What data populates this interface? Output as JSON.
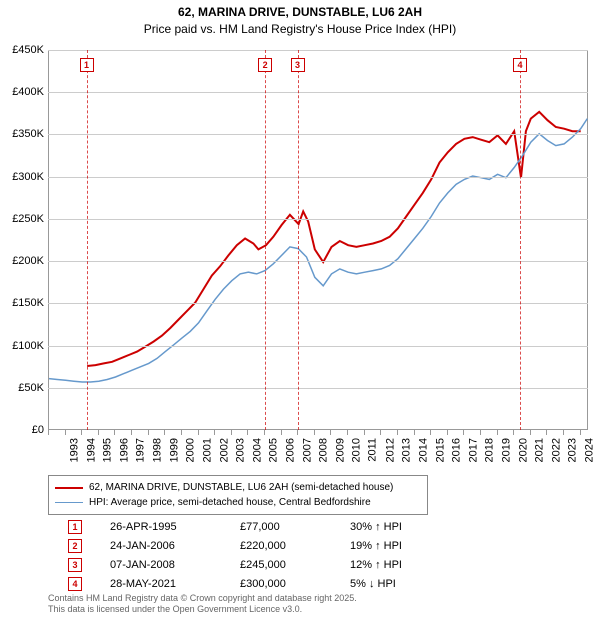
{
  "title": "62, MARINA DRIVE, DUNSTABLE, LU6 2AH",
  "subtitle": "Price paid vs. HM Land Registry's House Price Index (HPI)",
  "chart": {
    "type": "line",
    "background_color": "#ffffff",
    "grid_color": "#cccccc",
    "ylim": [
      0,
      450000
    ],
    "ytick_step": 50000,
    "y_ticks": [
      "£0",
      "£50K",
      "£100K",
      "£150K",
      "£200K",
      "£250K",
      "£300K",
      "£350K",
      "£400K",
      "£450K"
    ],
    "x_ticks": [
      "1993",
      "1994",
      "1995",
      "1996",
      "1997",
      "1998",
      "1999",
      "2000",
      "2001",
      "2002",
      "2003",
      "2004",
      "2005",
      "2006",
      "2007",
      "2008",
      "2009",
      "2010",
      "2011",
      "2012",
      "2013",
      "2014",
      "2015",
      "2016",
      "2017",
      "2018",
      "2019",
      "2020",
      "2021",
      "2022",
      "2023",
      "2024",
      "2025"
    ],
    "x_range": [
      1993,
      2025.5
    ],
    "title_fontsize": 12,
    "label_fontsize": 11,
    "series": [
      {
        "name": "property",
        "label": "62, MARINA DRIVE, DUNSTABLE, LU6 2AH (semi-detached house)",
        "color": "#cc0000",
        "line_width": 2,
        "points": [
          [
            1995.3,
            77000
          ],
          [
            1995.8,
            78000
          ],
          [
            1996.3,
            80000
          ],
          [
            1996.8,
            82000
          ],
          [
            1997.3,
            86000
          ],
          [
            1997.8,
            90000
          ],
          [
            1998.3,
            94000
          ],
          [
            1998.8,
            100000
          ],
          [
            1999.3,
            106000
          ],
          [
            1999.8,
            113000
          ],
          [
            2000.3,
            122000
          ],
          [
            2000.8,
            132000
          ],
          [
            2001.3,
            142000
          ],
          [
            2001.8,
            152000
          ],
          [
            2002.3,
            168000
          ],
          [
            2002.8,
            184000
          ],
          [
            2003.3,
            195000
          ],
          [
            2003.8,
            208000
          ],
          [
            2004.3,
            220000
          ],
          [
            2004.8,
            228000
          ],
          [
            2005.3,
            222000
          ],
          [
            2005.6,
            215000
          ],
          [
            2006.06,
            220000
          ],
          [
            2006.5,
            230000
          ],
          [
            2007.0,
            244000
          ],
          [
            2007.5,
            256000
          ],
          [
            2008.02,
            245000
          ],
          [
            2008.3,
            260000
          ],
          [
            2008.6,
            248000
          ],
          [
            2009.0,
            215000
          ],
          [
            2009.5,
            200000
          ],
          [
            2010.0,
            218000
          ],
          [
            2010.5,
            225000
          ],
          [
            2011.0,
            220000
          ],
          [
            2011.5,
            218000
          ],
          [
            2012.0,
            220000
          ],
          [
            2012.5,
            222000
          ],
          [
            2013.0,
            225000
          ],
          [
            2013.5,
            230000
          ],
          [
            2014.0,
            240000
          ],
          [
            2014.5,
            254000
          ],
          [
            2015.0,
            268000
          ],
          [
            2015.5,
            282000
          ],
          [
            2016.0,
            298000
          ],
          [
            2016.5,
            318000
          ],
          [
            2017.0,
            330000
          ],
          [
            2017.5,
            340000
          ],
          [
            2018.0,
            346000
          ],
          [
            2018.5,
            348000
          ],
          [
            2019.0,
            345000
          ],
          [
            2019.5,
            342000
          ],
          [
            2020.0,
            350000
          ],
          [
            2020.5,
            340000
          ],
          [
            2021.0,
            355000
          ],
          [
            2021.41,
            300000
          ],
          [
            2021.7,
            355000
          ],
          [
            2022.0,
            370000
          ],
          [
            2022.5,
            378000
          ],
          [
            2023.0,
            368000
          ],
          [
            2023.5,
            360000
          ],
          [
            2024.0,
            358000
          ],
          [
            2024.5,
            355000
          ],
          [
            2025.0,
            355000
          ]
        ]
      },
      {
        "name": "hpi",
        "label": "HPI: Average price, semi-detached house, Central Bedfordshire",
        "color": "#6699cc",
        "line_width": 1.5,
        "points": [
          [
            1993.0,
            62000
          ],
          [
            1993.5,
            61000
          ],
          [
            1994.0,
            60000
          ],
          [
            1994.5,
            59000
          ],
          [
            1995.0,
            58000
          ],
          [
            1995.5,
            58000
          ],
          [
            1996.0,
            59000
          ],
          [
            1996.5,
            61000
          ],
          [
            1997.0,
            64000
          ],
          [
            1997.5,
            68000
          ],
          [
            1998.0,
            72000
          ],
          [
            1998.5,
            76000
          ],
          [
            1999.0,
            80000
          ],
          [
            1999.5,
            86000
          ],
          [
            2000.0,
            94000
          ],
          [
            2000.5,
            102000
          ],
          [
            2001.0,
            110000
          ],
          [
            2001.5,
            118000
          ],
          [
            2002.0,
            128000
          ],
          [
            2002.5,
            142000
          ],
          [
            2003.0,
            156000
          ],
          [
            2003.5,
            168000
          ],
          [
            2004.0,
            178000
          ],
          [
            2004.5,
            186000
          ],
          [
            2005.0,
            188000
          ],
          [
            2005.5,
            186000
          ],
          [
            2006.0,
            190000
          ],
          [
            2006.5,
            198000
          ],
          [
            2007.0,
            208000
          ],
          [
            2007.5,
            218000
          ],
          [
            2008.0,
            216000
          ],
          [
            2008.5,
            206000
          ],
          [
            2009.0,
            182000
          ],
          [
            2009.5,
            172000
          ],
          [
            2010.0,
            186000
          ],
          [
            2010.5,
            192000
          ],
          [
            2011.0,
            188000
          ],
          [
            2011.5,
            186000
          ],
          [
            2012.0,
            188000
          ],
          [
            2012.5,
            190000
          ],
          [
            2013.0,
            192000
          ],
          [
            2013.5,
            196000
          ],
          [
            2014.0,
            204000
          ],
          [
            2014.5,
            216000
          ],
          [
            2015.0,
            228000
          ],
          [
            2015.5,
            240000
          ],
          [
            2016.0,
            254000
          ],
          [
            2016.5,
            270000
          ],
          [
            2017.0,
            282000
          ],
          [
            2017.5,
            292000
          ],
          [
            2018.0,
            298000
          ],
          [
            2018.5,
            302000
          ],
          [
            2019.0,
            300000
          ],
          [
            2019.5,
            298000
          ],
          [
            2020.0,
            304000
          ],
          [
            2020.5,
            300000
          ],
          [
            2021.0,
            312000
          ],
          [
            2021.5,
            326000
          ],
          [
            2022.0,
            342000
          ],
          [
            2022.5,
            352000
          ],
          [
            2023.0,
            344000
          ],
          [
            2023.5,
            338000
          ],
          [
            2024.0,
            340000
          ],
          [
            2024.5,
            348000
          ],
          [
            2025.0,
            358000
          ],
          [
            2025.4,
            370000
          ]
        ]
      }
    ],
    "sale_markers": [
      {
        "n": "1",
        "x": 1995.32
      },
      {
        "n": "2",
        "x": 2006.07
      },
      {
        "n": "3",
        "x": 2008.02
      },
      {
        "n": "4",
        "x": 2021.41
      }
    ]
  },
  "legend": {
    "items": [
      {
        "color": "#cc0000",
        "width": 2,
        "label": "62, MARINA DRIVE, DUNSTABLE, LU6 2AH (semi-detached house)"
      },
      {
        "color": "#6699cc",
        "width": 1.5,
        "label": "HPI: Average price, semi-detached house, Central Bedfordshire"
      }
    ]
  },
  "sales": [
    {
      "n": "1",
      "date": "26-APR-1995",
      "price": "£77,000",
      "delta": "30% ↑ HPI"
    },
    {
      "n": "2",
      "date": "24-JAN-2006",
      "price": "£220,000",
      "delta": "19% ↑ HPI"
    },
    {
      "n": "3",
      "date": "07-JAN-2008",
      "price": "£245,000",
      "delta": "12% ↑ HPI"
    },
    {
      "n": "4",
      "date": "28-MAY-2021",
      "price": "£300,000",
      "delta": "5% ↓ HPI"
    }
  ],
  "footer": {
    "line1": "Contains HM Land Registry data © Crown copyright and database right 2025.",
    "line2": "This data is licensed under the Open Government Licence v3.0."
  }
}
